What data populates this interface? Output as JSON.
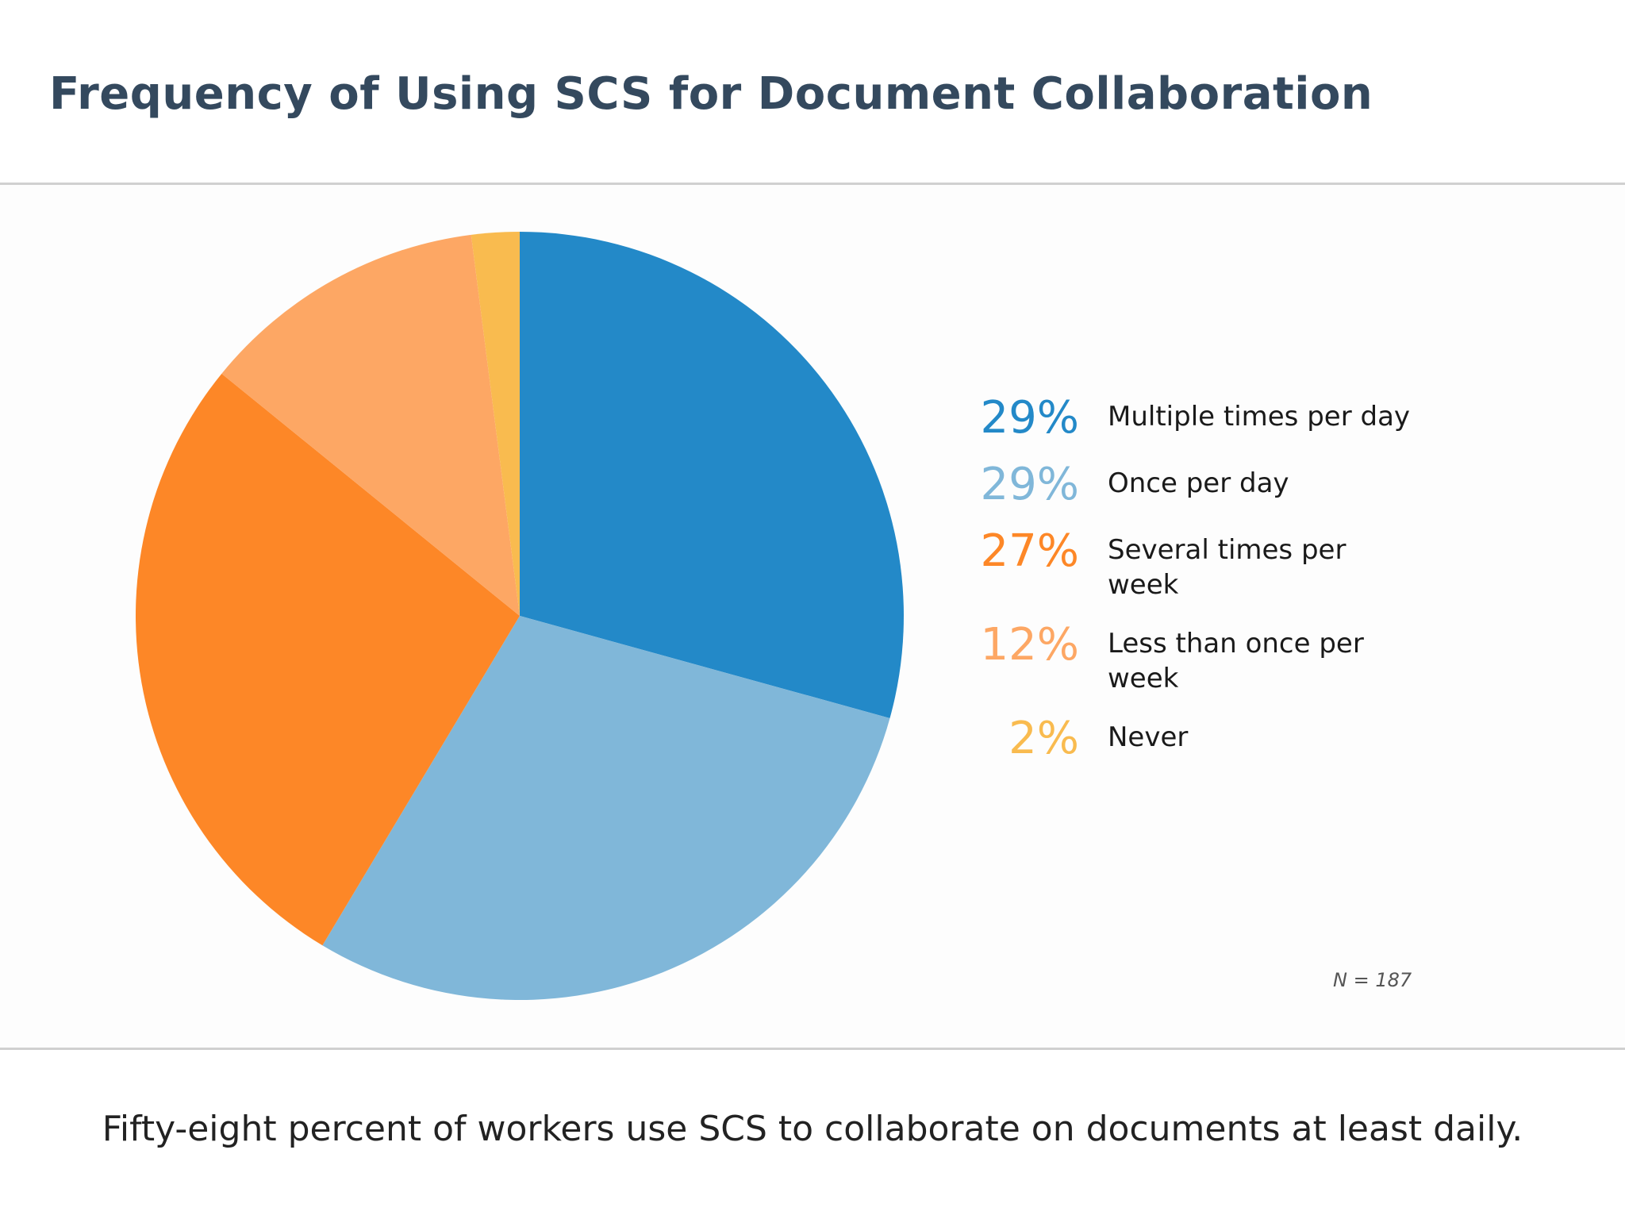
{
  "header": {
    "title": "Frequency of Using SCS for Document Collaboration"
  },
  "footer": {
    "caption": "Fifty-eight percent of workers use SCS to collaborate on documents at least daily."
  },
  "chart_data": {
    "type": "pie",
    "title": "Frequency of Using SCS for Document Collaboration",
    "sample_note": "N = 187",
    "legend_position": "right",
    "start_angle": "12 o'clock, clockwise",
    "slices": [
      {
        "label": "Multiple times per day",
        "value": 29,
        "display": "29%",
        "color": "#2389c8"
      },
      {
        "label": "Once per day",
        "value": 29,
        "display": "29%",
        "color": "#80b7d9"
      },
      {
        "label": "Several times per week",
        "value": 27,
        "display": "27%",
        "color": "#fd8727"
      },
      {
        "label": "Less than once per week",
        "value": 12,
        "display": "12%",
        "color": "#fda764"
      },
      {
        "label": "Never",
        "value": 2,
        "display": "2%",
        "color": "#f9bb4f"
      }
    ]
  }
}
